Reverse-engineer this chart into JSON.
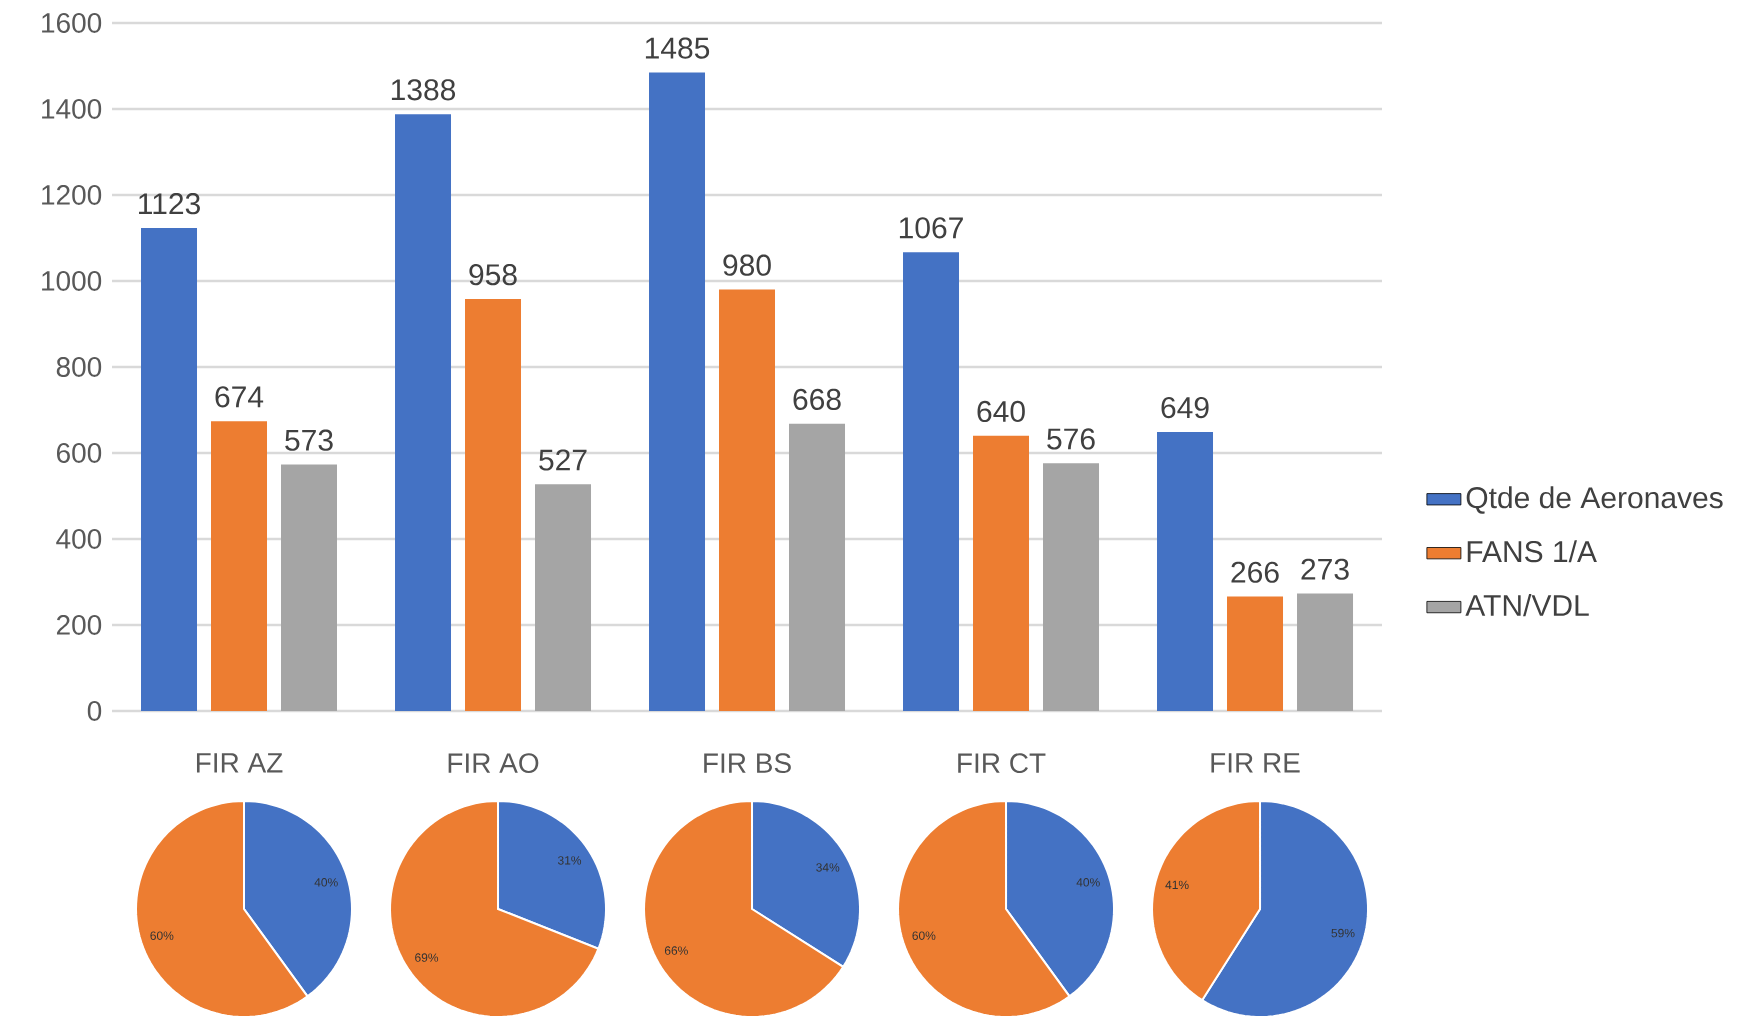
{
  "chart_data": [
    {
      "type": "bar",
      "categories": [
        "FIR AZ",
        "FIR AO",
        "FIR BS",
        "FIR CT",
        "FIR RE"
      ],
      "series": [
        {
          "name": "Qtde de Aeronaves",
          "color": "#4472c4",
          "values": [
            1123,
            1388,
            1485,
            1067,
            649
          ]
        },
        {
          "name": "FANS 1/A",
          "color": "#ed7d31",
          "values": [
            674,
            958,
            980,
            640,
            266
          ]
        },
        {
          "name": "ATN/VDL",
          "color": "#a5a5a5",
          "values": [
            573,
            527,
            668,
            576,
            273
          ]
        }
      ],
      "ylim": [
        0,
        1600
      ],
      "yticks": [
        0,
        200,
        400,
        600,
        800,
        1000,
        1200,
        1400,
        1600
      ],
      "grid": "y",
      "legend": "right",
      "data_labels": true
    },
    {
      "type": "pie",
      "categories": [
        null,
        null
      ],
      "values": [
        40,
        60
      ],
      "colors": [
        "#4472c4",
        "#ed7d31"
      ],
      "value_labels": [
        "40%",
        "60%"
      ]
    },
    {
      "type": "pie",
      "categories": [
        null,
        null
      ],
      "values": [
        31,
        69
      ],
      "colors": [
        "#4472c4",
        "#ed7d31"
      ],
      "value_labels": [
        "31%",
        "69%"
      ]
    },
    {
      "type": "pie",
      "categories": [
        null,
        null
      ],
      "values": [
        34,
        66
      ],
      "colors": [
        "#4472c4",
        "#ed7d31"
      ],
      "value_labels": [
        "34%",
        "66%"
      ]
    },
    {
      "type": "pie",
      "categories": [
        null,
        null
      ],
      "values": [
        40,
        60
      ],
      "colors": [
        "#4472c4",
        "#ed7d31"
      ],
      "value_labels": [
        "40%",
        "60%"
      ]
    },
    {
      "type": "pie",
      "categories": [
        null,
        null
      ],
      "values": [
        59,
        41
      ],
      "colors": [
        "#4472c4",
        "#ed7d31"
      ],
      "value_labels": [
        "59%",
        "41%"
      ]
    }
  ]
}
